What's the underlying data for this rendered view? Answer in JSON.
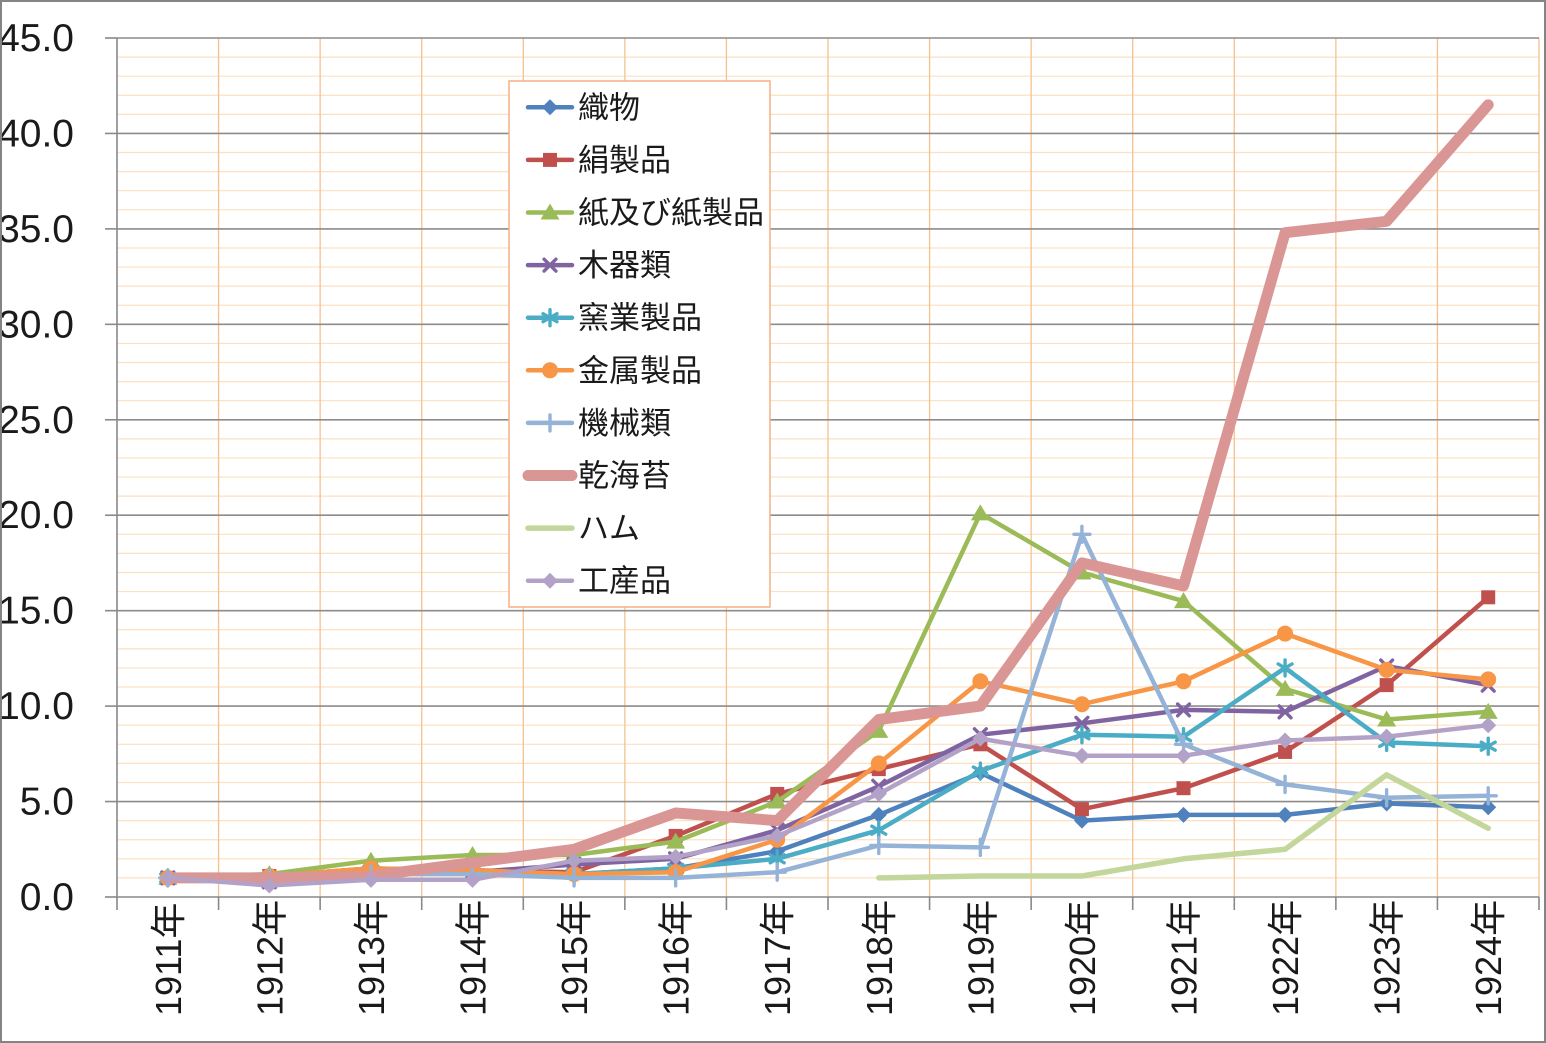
{
  "chart_data": {
    "type": "line",
    "title": "",
    "xlabel": "",
    "ylabel": "",
    "ylim": [
      0,
      45
    ],
    "y_major_step": 5,
    "y_minor_step": 1,
    "grid": "major-gray, minor-orange, vertical-orange",
    "legend_position": "upper-left-inside",
    "y_tick_labels": [
      "0.0",
      "5.0",
      "10.0",
      "15.0",
      "20.0",
      "25.0",
      "30.0",
      "35.0",
      "40.0",
      "45.0"
    ],
    "categories": [
      "1911年",
      "1912年",
      "1913年",
      "1914年",
      "1915年",
      "1916年",
      "1917年",
      "1918年",
      "1919年",
      "1920年",
      "1921年",
      "1922年",
      "1923年",
      "1924年"
    ],
    "series": [
      {
        "name": "織物",
        "slug": "textiles",
        "color": "#4F81BD",
        "marker": "diamond",
        "line_width": 4.5,
        "values": [
          1.0,
          1.0,
          1.4,
          1.4,
          1.2,
          1.5,
          2.4,
          4.3,
          6.5,
          4.0,
          4.3,
          4.3,
          4.9,
          4.7
        ]
      },
      {
        "name": "絹製品",
        "slug": "silk-products",
        "color": "#C0504D",
        "marker": "square",
        "line_width": 4.5,
        "values": [
          1.0,
          1.1,
          1.5,
          1.4,
          1.3,
          3.2,
          5.4,
          6.7,
          8.0,
          4.6,
          5.7,
          7.6,
          11.1,
          15.7
        ]
      },
      {
        "name": "紙及び紙製品",
        "slug": "paper-products",
        "color": "#9BBB59",
        "marker": "triangle",
        "line_width": 4.5,
        "values": [
          1.0,
          1.2,
          1.9,
          2.2,
          2.2,
          2.9,
          5.0,
          8.7,
          20.1,
          17.0,
          15.5,
          10.9,
          9.3,
          9.7
        ]
      },
      {
        "name": "木器類",
        "slug": "wooden-ware",
        "color": "#8064A2",
        "marker": "x",
        "line_width": 4.5,
        "values": [
          1.0,
          0.8,
          1.3,
          1.3,
          1.7,
          2.0,
          3.5,
          5.8,
          8.5,
          9.1,
          9.8,
          9.7,
          12.1,
          11.1
        ]
      },
      {
        "name": "窯業製品",
        "slug": "ceramics",
        "color": "#4BACC6",
        "marker": "asterisk",
        "line_width": 4.5,
        "values": [
          1.0,
          1.0,
          1.4,
          1.4,
          1.2,
          1.5,
          2.0,
          3.5,
          6.6,
          8.5,
          8.4,
          12.0,
          8.1,
          7.9
        ]
      },
      {
        "name": "金属製品",
        "slug": "metal-products",
        "color": "#F79646",
        "marker": "circle",
        "line_width": 4.5,
        "values": [
          1.0,
          1.1,
          1.5,
          1.4,
          1.2,
          1.3,
          3.0,
          7.0,
          11.3,
          10.1,
          11.3,
          13.8,
          11.9,
          11.4
        ]
      },
      {
        "name": "機械類",
        "slug": "machinery",
        "color": "#95B3D7",
        "marker": "plus",
        "line_width": 4.5,
        "values": [
          1.0,
          1.0,
          1.2,
          1.2,
          1.0,
          1.0,
          1.3,
          2.7,
          2.6,
          19.0,
          8.0,
          5.9,
          5.2,
          5.3
        ]
      },
      {
        "name": "乾海苔",
        "slug": "dried-nori",
        "color": "#D99694",
        "marker": "none",
        "line_width": 11,
        "values": [
          1.0,
          1.0,
          1.1,
          1.8,
          2.5,
          4.4,
          4.0,
          9.3,
          10.0,
          17.5,
          16.3,
          34.8,
          35.4,
          41.5
        ]
      },
      {
        "name": "ハム",
        "slug": "ham",
        "color": "#C3D69B",
        "marker": "none",
        "line_width": 5.5,
        "values": [
          null,
          null,
          null,
          null,
          null,
          null,
          null,
          1.0,
          1.1,
          1.1,
          2.0,
          2.5,
          6.4,
          3.6
        ]
      },
      {
        "name": "工産品",
        "slug": "industrial-products",
        "color": "#B3A2C7",
        "marker": "diamond",
        "line_width": 4.5,
        "values": [
          1.0,
          0.6,
          0.9,
          0.9,
          1.9,
          2.1,
          3.2,
          5.4,
          8.3,
          7.4,
          7.4,
          8.2,
          8.4,
          9.0
        ]
      }
    ],
    "colors": {
      "axis": "#898989",
      "major_gridline": "#8C8C8C",
      "minor_gridline": "#FBE0C2",
      "vertical_gridline": "#F6C18E",
      "legend_border": "#F4B183",
      "label_text": "#1a1a1a",
      "background": "#ffffff"
    }
  }
}
